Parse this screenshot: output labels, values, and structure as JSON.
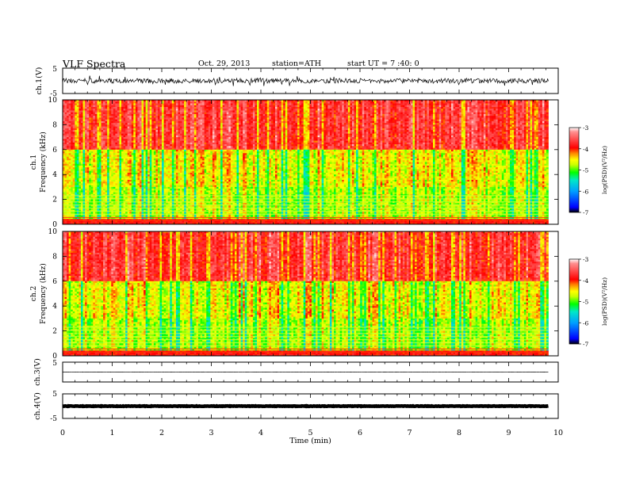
{
  "header": {
    "title": "VLF  Spectra",
    "date": "Oct. 29, 2013",
    "station": "station=ATH",
    "start": "start  UT  =   7  :40:  0"
  },
  "colors": {
    "spectrogram_scale": [
      "#000000",
      "#0000ff",
      "#00a0ff",
      "#00e8c8",
      "#00ff00",
      "#c8ff00",
      "#ffff00",
      "#ff8000",
      "#ff0000",
      "#ffffff"
    ],
    "waveform": "#000000",
    "axes": "#000000"
  },
  "chart_data": [
    {
      "type": "line",
      "panel": "ch1-waveform",
      "ylabel": "ch.1(V)",
      "yticks": [
        "5",
        "-5"
      ],
      "ylim": [
        -5,
        5
      ],
      "xlim": [
        0,
        10
      ],
      "description_level": "noisy waveform, amplitude roughly ±1 V, spanning 0–9.8 min"
    },
    {
      "type": "heatmap",
      "panel": "ch1-spectrogram",
      "ylabel_1": "ch.1",
      "ylabel_2": "Frequency  (kHz)",
      "yticks": [
        "0",
        "2",
        "4",
        "6",
        "8",
        "10"
      ],
      "ylim": [
        0,
        10
      ],
      "xlim": [
        0,
        10
      ],
      "data_end_min": 9.8,
      "colorbar": {
        "label": "log(PSD)(V²/Hz)",
        "ticks": [
          "-3",
          "-4",
          "-5",
          "-6",
          "-7"
        ],
        "range": [
          -7,
          -3
        ]
      }
    },
    {
      "type": "heatmap",
      "panel": "ch2-spectrogram",
      "ylabel_1": "ch.2",
      "ylabel_2": "Frequency  (kHz)",
      "yticks": [
        "0",
        "2",
        "4",
        "6",
        "8",
        "10"
      ],
      "ylim": [
        0,
        10
      ],
      "xlim": [
        0,
        10
      ],
      "data_end_min": 9.8,
      "colorbar": {
        "label": "log(PSD)(V²/Hz)",
        "ticks": [
          "-3",
          "-4",
          "-5",
          "-6",
          "-7"
        ],
        "range": [
          -7,
          -3
        ]
      }
    },
    {
      "type": "line",
      "panel": "ch3-waveform",
      "ylabel": "ch.3(V)",
      "yticks": [
        "5",
        "-5"
      ],
      "ylim": [
        -5,
        5
      ],
      "xlim": [
        0,
        10
      ],
      "description_level": "flat line near 0 V"
    },
    {
      "type": "line",
      "panel": "ch4-waveform",
      "ylabel": "ch.4(V)",
      "yticks": [
        "5",
        "-5"
      ],
      "ylim": [
        -5,
        5
      ],
      "xlim": [
        0,
        10
      ],
      "description_level": "thick flat band near 0 V"
    }
  ],
  "xaxis": {
    "label": "Time  (min)",
    "ticks": [
      "0",
      "1",
      "2",
      "3",
      "4",
      "5",
      "6",
      "7",
      "8",
      "9",
      "10"
    ]
  }
}
